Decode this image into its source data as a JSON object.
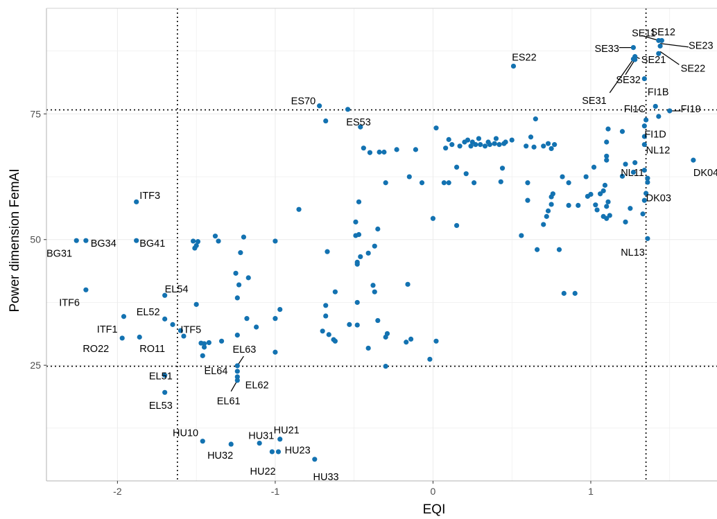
{
  "chart_data": {
    "type": "scatter",
    "xlabel": "EQI",
    "ylabel": "Power dimension FemAI",
    "xlim": [
      -2.45,
      1.8
    ],
    "ylim": [
      2,
      96
    ],
    "x_ticks": [
      -2,
      -1,
      0,
      1
    ],
    "x_tick_labels": [
      "-2",
      "-1",
      "0",
      "1"
    ],
    "y_ticks": [
      25,
      50,
      75
    ],
    "y_tick_labels": [
      "25",
      "50",
      "75"
    ],
    "grid": true,
    "point_color": "#1372b1",
    "reference_lines": {
      "x": [
        -1.62,
        1.35
      ],
      "y": [
        24.8,
        75.8
      ]
    },
    "labeled_points": [
      {
        "label": "SE11",
        "x": 1.43,
        "y": 89.6
      },
      {
        "label": "SE12",
        "x": 1.45,
        "y": 89.6
      },
      {
        "label": "SE23",
        "x": 1.44,
        "y": 88.5
      },
      {
        "label": "SE33",
        "x": 1.27,
        "y": 88.2
      },
      {
        "label": "SE21",
        "x": 1.28,
        "y": 86.4
      },
      {
        "label": "SE22",
        "x": 1.43,
        "y": 87.0
      },
      {
        "label": "SE32",
        "x": 1.28,
        "y": 85.8
      },
      {
        "label": "SE31",
        "x": 1.27,
        "y": 85.9
      },
      {
        "label": "ES22",
        "x": 0.51,
        "y": 84.5
      },
      {
        "label": "FI1B",
        "x": 1.34,
        "y": 82.0
      },
      {
        "label": "ES70",
        "x": -0.72,
        "y": 76.6
      },
      {
        "label": "ES53",
        "x": -0.54,
        "y": 75.9
      },
      {
        "label": "FI1C",
        "x": 1.41,
        "y": 76.5
      },
      {
        "label": "FI19",
        "x": 1.5,
        "y": 75.6
      },
      {
        "label": "FI1D",
        "x": 1.35,
        "y": 73.8
      },
      {
        "label": "NL12",
        "x": 1.34,
        "y": 68.9
      },
      {
        "label": "NL11",
        "x": 1.34,
        "y": 63.8
      },
      {
        "label": "DK04",
        "x": 1.65,
        "y": 65.8
      },
      {
        "label": "DK03",
        "x": 1.36,
        "y": 61.4
      },
      {
        "label": "NL13",
        "x": 1.36,
        "y": 50.2
      },
      {
        "label": "ITF3",
        "x": -1.88,
        "y": 57.5
      },
      {
        "label": "BG31",
        "x": -2.26,
        "y": 49.8
      },
      {
        "label": "BG34",
        "x": -2.2,
        "y": 49.8
      },
      {
        "label": "BG41",
        "x": -1.88,
        "y": 49.8
      },
      {
        "label": "ITF6",
        "x": -2.2,
        "y": 40.0
      },
      {
        "label": "EL54",
        "x": -1.7,
        "y": 38.9
      },
      {
        "label": "EL52",
        "x": -1.7,
        "y": 34.2
      },
      {
        "label": "ITF1",
        "x": -1.96,
        "y": 34.7
      },
      {
        "label": "ITF5",
        "x": -1.6,
        "y": 31.9
      },
      {
        "label": "RO22",
        "x": -1.97,
        "y": 30.4
      },
      {
        "label": "RO11",
        "x": -1.86,
        "y": 30.6
      },
      {
        "label": "EL63",
        "x": -1.24,
        "y": 24.9
      },
      {
        "label": "EL64",
        "x": -1.24,
        "y": 23.8
      },
      {
        "label": "EL62",
        "x": -1.24,
        "y": 22.7
      },
      {
        "label": "EL61",
        "x": -1.24,
        "y": 22.0
      },
      {
        "label": "EL51",
        "x": -1.7,
        "y": 23.0
      },
      {
        "label": "EL53",
        "x": -1.7,
        "y": 19.6
      },
      {
        "label": "HU10",
        "x": -1.46,
        "y": 9.9
      },
      {
        "label": "HU31",
        "x": -1.1,
        "y": 9.5
      },
      {
        "label": "HU21",
        "x": -0.97,
        "y": 10.3
      },
      {
        "label": "HU32",
        "x": -1.28,
        "y": 9.3
      },
      {
        "label": "HU23",
        "x": -0.98,
        "y": 7.8
      },
      {
        "label": "HU22",
        "x": -1.02,
        "y": 7.8
      },
      {
        "label": "HU33",
        "x": -0.75,
        "y": 6.3
      }
    ],
    "other_points": [
      [
        -0.68,
        73.6
      ],
      [
        -0.46,
        72.4
      ],
      [
        0.02,
        72.2
      ],
      [
        0.65,
        74.0
      ],
      [
        1.2,
        71.5
      ],
      [
        1.11,
        72.0
      ],
      [
        1.43,
        74.5
      ],
      [
        1.34,
        72.6
      ],
      [
        1.34,
        70.5
      ],
      [
        -0.44,
        68.2
      ],
      [
        -0.4,
        67.3
      ],
      [
        -0.34,
        67.4
      ],
      [
        -0.31,
        67.4
      ],
      [
        -0.23,
        67.9
      ],
      [
        -0.11,
        67.9
      ],
      [
        0.08,
        68.2
      ],
      [
        0.1,
        69.9
      ],
      [
        0.12,
        68.9
      ],
      [
        0.17,
        68.6
      ],
      [
        0.2,
        69.4
      ],
      [
        0.22,
        69.8
      ],
      [
        0.24,
        68.6
      ],
      [
        0.25,
        69.4
      ],
      [
        0.27,
        68.9
      ],
      [
        0.29,
        70.1
      ],
      [
        0.3,
        68.9
      ],
      [
        0.33,
        68.6
      ],
      [
        0.35,
        69.4
      ],
      [
        0.36,
        68.9
      ],
      [
        0.39,
        69.1
      ],
      [
        0.4,
        70.1
      ],
      [
        0.42,
        68.9
      ],
      [
        0.45,
        69.1
      ],
      [
        0.46,
        69.4
      ],
      [
        0.5,
        69.8
      ],
      [
        0.59,
        68.6
      ],
      [
        0.62,
        70.4
      ],
      [
        0.64,
        68.4
      ],
      [
        0.7,
        68.6
      ],
      [
        0.73,
        69.1
      ],
      [
        0.75,
        68.1
      ],
      [
        0.77,
        68.9
      ],
      [
        1.1,
        69.4
      ],
      [
        1.1,
        66.6
      ],
      [
        1.1,
        65.8
      ],
      [
        -0.3,
        61.3
      ],
      [
        -0.15,
        62.5
      ],
      [
        -0.07,
        61.3
      ],
      [
        0.07,
        61.3
      ],
      [
        0.1,
        61.3
      ],
      [
        0.15,
        64.4
      ],
      [
        0.21,
        63.1
      ],
      [
        0.26,
        61.3
      ],
      [
        0.43,
        61.5
      ],
      [
        0.44,
        64.2
      ],
      [
        0.6,
        61.3
      ],
      [
        0.82,
        62.5
      ],
      [
        0.86,
        61.3
      ],
      [
        0.97,
        62.5
      ],
      [
        1.02,
        64.4
      ],
      [
        1.2,
        62.6
      ],
      [
        1.27,
        63.4
      ],
      [
        1.22,
        65.0
      ],
      [
        1.28,
        65.3
      ],
      [
        1.36,
        62.2
      ],
      [
        -0.85,
        56.0
      ],
      [
        -0.47,
        57.5
      ],
      [
        0.15,
        52.8
      ],
      [
        0.0,
        54.2
      ],
      [
        0.6,
        57.8
      ],
      [
        0.75,
        58.5
      ],
      [
        0.76,
        59.1
      ],
      [
        0.73,
        55.7
      ],
      [
        0.72,
        54.6
      ],
      [
        0.7,
        53.0
      ],
      [
        0.75,
        57.0
      ],
      [
        0.86,
        56.8
      ],
      [
        0.92,
        56.8
      ],
      [
        0.98,
        58.6
      ],
      [
        1.0,
        59.0
      ],
      [
        1.03,
        56.9
      ],
      [
        1.04,
        55.9
      ],
      [
        1.06,
        59.1
      ],
      [
        1.08,
        59.7
      ],
      [
        1.09,
        60.8
      ],
      [
        1.1,
        56.6
      ],
      [
        1.11,
        57.5
      ],
      [
        1.12,
        54.8
      ],
      [
        1.08,
        54.6
      ],
      [
        1.25,
        56.2
      ],
      [
        1.22,
        53.5
      ],
      [
        1.33,
        55.1
      ],
      [
        1.34,
        57.8
      ],
      [
        1.35,
        59.2
      ],
      [
        1.1,
        54.2
      ],
      [
        -1.52,
        49.7
      ],
      [
        -1.51,
        48.3
      ],
      [
        -1.5,
        48.8
      ],
      [
        -1.49,
        49.6
      ],
      [
        -1.38,
        50.7
      ],
      [
        -1.36,
        49.7
      ],
      [
        -1.2,
        50.5
      ],
      [
        -1.22,
        47.4
      ],
      [
        -1.0,
        49.7
      ],
      [
        -0.67,
        47.6
      ],
      [
        -0.49,
        50.8
      ],
      [
        -0.47,
        51.0
      ],
      [
        -0.49,
        53.5
      ],
      [
        -0.46,
        46.6
      ],
      [
        -0.48,
        45.5
      ],
      [
        -0.48,
        45.1
      ],
      [
        -0.41,
        47.3
      ],
      [
        -0.37,
        48.7
      ],
      [
        -0.35,
        52.1
      ],
      [
        0.56,
        50.8
      ],
      [
        0.66,
        48.0
      ],
      [
        0.8,
        48.0
      ],
      [
        -1.25,
        43.3
      ],
      [
        -1.17,
        42.4
      ],
      [
        -1.23,
        41.0
      ],
      [
        -1.24,
        38.4
      ],
      [
        -0.62,
        39.6
      ],
      [
        -0.38,
        40.9
      ],
      [
        -0.37,
        39.6
      ],
      [
        -0.16,
        41.1
      ],
      [
        -0.48,
        37.5
      ],
      [
        -0.68,
        36.9
      ],
      [
        -0.68,
        34.8
      ],
      [
        0.83,
        39.3
      ],
      [
        0.9,
        39.3
      ],
      [
        -1.5,
        37.1
      ],
      [
        -1.18,
        34.3
      ],
      [
        -0.97,
        36.1
      ],
      [
        -1.0,
        34.3
      ],
      [
        -1.65,
        33.1
      ],
      [
        -1.12,
        32.6
      ],
      [
        -0.53,
        33.1
      ],
      [
        -0.48,
        33.0
      ],
      [
        -0.35,
        33.9
      ],
      [
        -1.58,
        30.8
      ],
      [
        -1.47,
        29.4
      ],
      [
        -1.45,
        28.6
      ],
      [
        -1.45,
        29.3
      ],
      [
        -1.42,
        29.5
      ],
      [
        -1.34,
        29.8
      ],
      [
        -1.24,
        31.0
      ],
      [
        -1.46,
        26.9
      ],
      [
        -1.0,
        27.6
      ],
      [
        -0.7,
        31.8
      ],
      [
        -0.66,
        31.1
      ],
      [
        -0.63,
        30.1
      ],
      [
        -0.62,
        29.8
      ],
      [
        -0.41,
        28.4
      ],
      [
        -0.3,
        30.6
      ],
      [
        -0.29,
        31.3
      ],
      [
        -0.17,
        29.6
      ],
      [
        -0.14,
        30.2
      ],
      [
        0.02,
        29.8
      ],
      [
        -0.02,
        26.2
      ],
      [
        -0.3,
        24.8
      ]
    ]
  },
  "annotations": [
    {
      "text": "SE11",
      "tx": 1.26,
      "ty": 91.1,
      "anchor": "start",
      "line": [
        1.32,
        90.6,
        1.43,
        89.6
      ]
    },
    {
      "text": "SE12",
      "tx": 1.38,
      "ty": 91.3,
      "anchor": "start",
      "line": null
    },
    {
      "text": "SE23",
      "tx": 1.62,
      "ty": 88.6,
      "anchor": "start",
      "line": [
        1.44,
        89.0,
        1.62,
        88.3
      ]
    },
    {
      "text": "SE33",
      "tx": 1.18,
      "ty": 88.0,
      "anchor": "end",
      "line": [
        1.18,
        88.2,
        1.27,
        88.2
      ]
    },
    {
      "text": "SE21",
      "tx": 1.32,
      "ty": 85.8,
      "anchor": "start",
      "line": [
        1.28,
        86.4,
        1.31,
        86.0
      ]
    },
    {
      "text": "SE22",
      "tx": 1.57,
      "ty": 84.1,
      "anchor": "start",
      "line": [
        1.44,
        87.4,
        1.56,
        84.8
      ]
    },
    {
      "text": "SE32",
      "tx": 1.16,
      "ty": 81.8,
      "anchor": "start",
      "line": [
        1.22,
        82.8,
        1.28,
        85.8
      ]
    },
    {
      "text": "SE31",
      "tx": 1.1,
      "ty": 77.7,
      "anchor": "end",
      "line": [
        1.12,
        79.2,
        1.27,
        85.9
      ]
    },
    {
      "text": "ES22",
      "tx": 0.5,
      "ty": 86.3,
      "anchor": "start",
      "line": null
    },
    {
      "text": "FI1B",
      "tx": 1.36,
      "ty": 79.4,
      "anchor": "start",
      "line": null
    },
    {
      "text": "ES70",
      "tx": -0.9,
      "ty": 77.6,
      "anchor": "start",
      "line": null
    },
    {
      "text": "ES53",
      "tx": -0.55,
      "ty": 73.4,
      "anchor": "start",
      "line": null
    },
    {
      "text": "FI1C",
      "tx": 1.21,
      "ty": 76.0,
      "anchor": "start",
      "line": null
    },
    {
      "text": "FI19",
      "tx": 1.57,
      "ty": 76.0,
      "anchor": "start",
      "line": [
        1.5,
        75.6,
        1.57,
        75.6
      ]
    },
    {
      "text": "FI1D",
      "tx": 1.34,
      "ty": 71.0,
      "anchor": "start",
      "line": null
    },
    {
      "text": "NL12",
      "tx": 1.35,
      "ty": 67.8,
      "anchor": "start",
      "line": null
    },
    {
      "text": "NL11",
      "tx": 1.19,
      "ty": 63.3,
      "anchor": "start",
      "line": null
    },
    {
      "text": "DK04",
      "tx": 1.65,
      "ty": 63.3,
      "anchor": "start",
      "line": null
    },
    {
      "text": "DK03",
      "tx": 1.35,
      "ty": 58.3,
      "anchor": "start",
      "line": null
    },
    {
      "text": "NL13",
      "tx": 1.19,
      "ty": 47.5,
      "anchor": "start",
      "line": null
    },
    {
      "text": "ITF3",
      "tx": -1.86,
      "ty": 58.8,
      "anchor": "start",
      "line": null
    },
    {
      "text": "BG31",
      "tx": -2.45,
      "ty": 47.3,
      "anchor": "start",
      "line": null
    },
    {
      "text": "BG34",
      "tx": -2.17,
      "ty": 49.3,
      "anchor": "start",
      "line": null
    },
    {
      "text": "BG41",
      "tx": -1.86,
      "ty": 49.3,
      "anchor": "start",
      "line": null
    },
    {
      "text": "ITF6",
      "tx": -2.37,
      "ty": 37.5,
      "anchor": "start",
      "line": null
    },
    {
      "text": "EL54",
      "tx": -1.7,
      "ty": 40.2,
      "anchor": "start",
      "line": null
    },
    {
      "text": "EL52",
      "tx": -1.88,
      "ty": 35.6,
      "anchor": "start",
      "line": null
    },
    {
      "text": "ITF1",
      "tx": -2.13,
      "ty": 32.2,
      "anchor": "start",
      "line": null
    },
    {
      "text": "ITF5",
      "tx": -1.6,
      "ty": 32.1,
      "anchor": "start",
      "line": null
    },
    {
      "text": "RO22",
      "tx": -2.22,
      "ty": 28.3,
      "anchor": "start",
      "line": null
    },
    {
      "text": "RO11",
      "tx": -1.86,
      "ty": 28.3,
      "anchor": "start",
      "line": null
    },
    {
      "text": "EL63",
      "tx": -1.27,
      "ty": 28.2,
      "anchor": "start",
      "line": [
        -1.2,
        26.8,
        -1.24,
        24.9
      ]
    },
    {
      "text": "EL64",
      "tx": -1.45,
      "ty": 23.9,
      "anchor": "start",
      "line": null
    },
    {
      "text": "EL62",
      "tx": -1.19,
      "ty": 21.1,
      "anchor": "start",
      "line": null
    },
    {
      "text": "EL61",
      "tx": -1.37,
      "ty": 17.9,
      "anchor": "start",
      "line": [
        -1.28,
        19.8,
        -1.24,
        22.0
      ]
    },
    {
      "text": "EL51",
      "tx": -1.8,
      "ty": 22.9,
      "anchor": "start",
      "line": null
    },
    {
      "text": "EL53",
      "tx": -1.8,
      "ty": 17.0,
      "anchor": "start",
      "line": null
    },
    {
      "text": "HU10",
      "tx": -1.65,
      "ty": 11.6,
      "anchor": "start",
      "line": null
    },
    {
      "text": "HU31",
      "tx": -1.17,
      "ty": 11.0,
      "anchor": "start",
      "line": null
    },
    {
      "text": "HU21",
      "tx": -1.01,
      "ty": 12.1,
      "anchor": "start",
      "line": null
    },
    {
      "text": "HU32",
      "tx": -1.43,
      "ty": 7.1,
      "anchor": "start",
      "line": null
    },
    {
      "text": "HU23",
      "tx": -0.94,
      "ty": 8.1,
      "anchor": "start",
      "line": null
    },
    {
      "text": "HU22",
      "tx": -1.16,
      "ty": 3.9,
      "anchor": "start",
      "line": null
    },
    {
      "text": "HU33",
      "tx": -0.76,
      "ty": 2.8,
      "anchor": "start",
      "line": null
    }
  ]
}
